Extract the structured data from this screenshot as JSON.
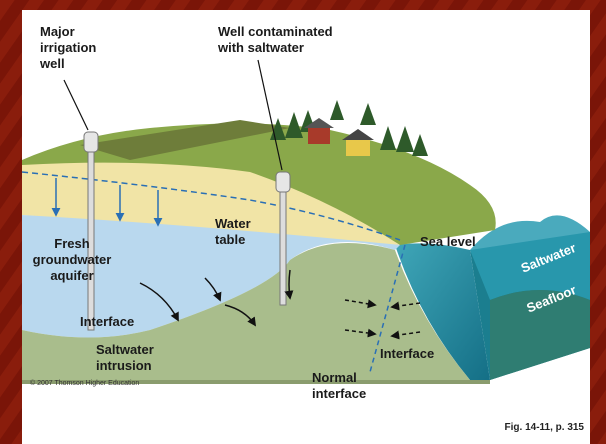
{
  "labels": {
    "major_well": [
      "Major",
      "irrigation",
      "well"
    ],
    "contaminated_well": [
      "Well contaminated",
      "with saltwater"
    ],
    "water_table": [
      "Water",
      "table"
    ],
    "aquifer": [
      "Fresh",
      "groundwater",
      "aquifer"
    ],
    "sea_level": [
      "Sea level"
    ],
    "saltwater": [
      "Saltwater"
    ],
    "seafloor": [
      "Seafloor"
    ],
    "interface_left": [
      "Interface"
    ],
    "interface_right": [
      "Interface"
    ],
    "intrusion": [
      "Saltwater",
      "intrusion"
    ],
    "normal_interface": [
      "Normal",
      "interface"
    ]
  },
  "copyright": "© 2007 Thomson Higher Education",
  "caption": "Fig. 14-11, p. 315"
}
